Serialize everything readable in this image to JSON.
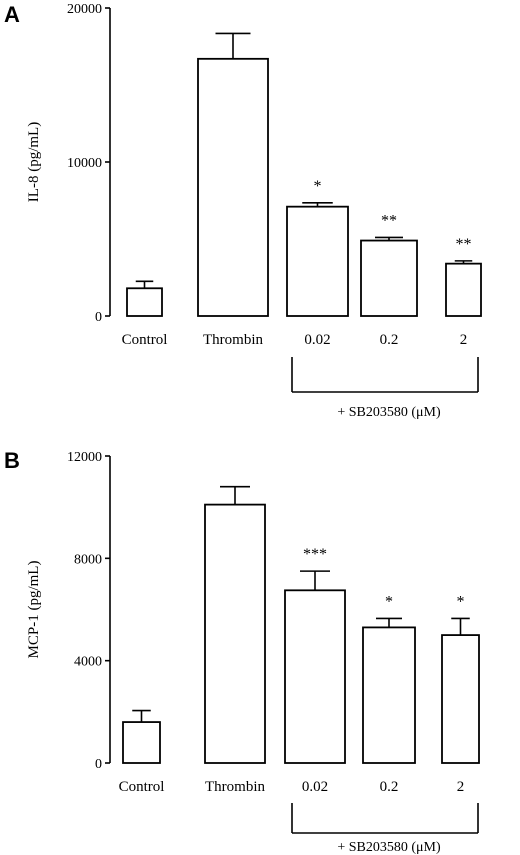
{
  "chart_data": [
    {
      "type": "bar",
      "panel": "A",
      "ylabel": "IL-8   (pg/mL)",
      "ylim": [
        0,
        20000
      ],
      "yticks": [
        0,
        10000,
        20000
      ],
      "categories": [
        "Control",
        "Thrombin",
        "0.02",
        "0.2",
        "2"
      ],
      "values": [
        1800,
        16700,
        7100,
        4900,
        3400
      ],
      "errors": [
        450,
        1650,
        250,
        200,
        180
      ],
      "significance": [
        "",
        "",
        "*",
        "**",
        "**"
      ],
      "bracket_label": "+ SB203580 (μM)",
      "grid": false
    },
    {
      "type": "bar",
      "panel": "B",
      "ylabel": "MCP-1   (pg/mL)",
      "ylim": [
        0,
        12000
      ],
      "yticks": [
        0,
        4000,
        8000,
        12000
      ],
      "categories": [
        "Control",
        "Thrombin",
        "0.02",
        "0.2",
        "2"
      ],
      "values": [
        1600,
        10100,
        6750,
        5300,
        5000
      ],
      "errors": [
        450,
        700,
        750,
        350,
        650
      ],
      "significance": [
        "",
        "",
        "***",
        "*",
        "*"
      ],
      "bracket_label": "+ SB203580 (μM)",
      "grid": false
    }
  ]
}
